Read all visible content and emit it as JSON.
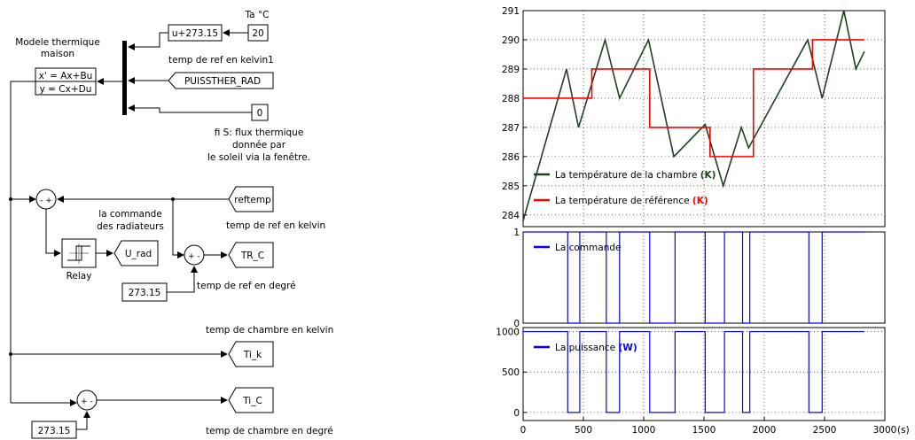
{
  "diagram": {
    "model_title": "Modele thermique\nmaison",
    "state_space_eq1": "x' = Ax+Bu",
    "state_space_eq2": "y = Cx+Du",
    "ta_label": "Ta °C",
    "const_20": "20",
    "fcn_block": "u+273.15",
    "ref_kelvin1_label": "temp de ref en kelvin1",
    "puissther_block": "PUISSTHER_RAD",
    "const_0": "0",
    "sun_flux_label": "fi S: flux thermique\ndonnée par\nle soleil via la fenêtre.",
    "reftemp_block": "reftemp",
    "ref_kelvin_label": "temp de ref en kelvin",
    "commande_label": "la commande\ndes radiateurs",
    "u_rad_block": "U_rad",
    "relay_label": "Relay",
    "tr_c_block": "TR_C",
    "const_27315_a": "273.15",
    "ref_degree_label": "temp de ref en degré",
    "room_kelvin_label": "temp de chambre en kelvin",
    "ti_k_block": "Ti_k",
    "ti_c_block": "Ti_C",
    "const_27315_b": "273.15",
    "room_degree_label": "temp de chambre en degré",
    "sum1_signs": "- +",
    "sum2_signs": "+ -",
    "sum3_signs": "+ -"
  },
  "chart_data": [
    {
      "type": "line",
      "ylim": [
        283.6,
        291
      ],
      "xlim": [
        0,
        3000
      ],
      "yticks": [
        "284",
        "285",
        "286",
        "287",
        "288",
        "289",
        "290",
        "291"
      ],
      "grid": true,
      "series": [
        {
          "name": "La température de la chambre (K)",
          "name_main": "La température de la chambre",
          "name_unit": "(K)",
          "color": "#204020",
          "x": [
            0,
            360,
            460,
            680,
            800,
            1040,
            1250,
            1510,
            1660,
            1810,
            1870,
            2360,
            2480,
            2660,
            2760,
            2830
          ],
          "y": [
            283.8,
            289,
            287,
            290,
            288,
            290,
            286,
            287.1,
            285,
            287,
            286.3,
            290,
            288,
            291,
            289,
            289.6
          ]
        },
        {
          "name": "La température de référence (K)",
          "name_main": "La température de référence",
          "name_unit": "(K)",
          "color": "#ff0000",
          "x": [
            0,
            570,
            570,
            1050,
            1050,
            1550,
            1550,
            1910,
            1910,
            2400,
            2400,
            2830
          ],
          "y": [
            288,
            288,
            289,
            289,
            287,
            287,
            286,
            286,
            289,
            289,
            290,
            290
          ]
        }
      ]
    },
    {
      "type": "line",
      "ylim": [
        0,
        1
      ],
      "xlim": [
        0,
        3000
      ],
      "yticks": [
        "0",
        "1"
      ],
      "grid": true,
      "series": [
        {
          "name": "La commande",
          "color": "#0000ff",
          "x": [
            0,
            370,
            370,
            470,
            470,
            690,
            690,
            800,
            800,
            1050,
            1050,
            1260,
            1260,
            1510,
            1510,
            1670,
            1670,
            1820,
            1820,
            1880,
            1880,
            2370,
            2370,
            2480,
            2480,
            2830
          ],
          "y": [
            1,
            1,
            0,
            0,
            1,
            1,
            0,
            0,
            1,
            1,
            0,
            0,
            1,
            1,
            0,
            0,
            1,
            1,
            0,
            0,
            1,
            1,
            0,
            0,
            1,
            1
          ]
        }
      ]
    },
    {
      "type": "line",
      "ylim": [
        -100,
        1050
      ],
      "xlim": [
        0,
        3000
      ],
      "yticks": [
        "0",
        "500",
        "1000"
      ],
      "xticks": [
        "0",
        "500",
        "1000",
        "1500",
        "2000",
        "2500",
        "3000"
      ],
      "xunit": "(s)",
      "grid": true,
      "series": [
        {
          "name": "La puissance (W)",
          "name_main": "La puissance",
          "name_unit": "(W)",
          "color": "#0000ff",
          "x": [
            0,
            370,
            370,
            470,
            470,
            690,
            690,
            800,
            800,
            1050,
            1050,
            1260,
            1260,
            1510,
            1510,
            1670,
            1670,
            1820,
            1820,
            1880,
            1880,
            2370,
            2370,
            2480,
            2480,
            2830
          ],
          "y": [
            1000,
            1000,
            0,
            0,
            1000,
            1000,
            0,
            0,
            1000,
            1000,
            0,
            0,
            1000,
            1000,
            0,
            0,
            1000,
            1000,
            0,
            0,
            1000,
            1000,
            0,
            0,
            1000,
            1000
          ]
        }
      ]
    }
  ]
}
